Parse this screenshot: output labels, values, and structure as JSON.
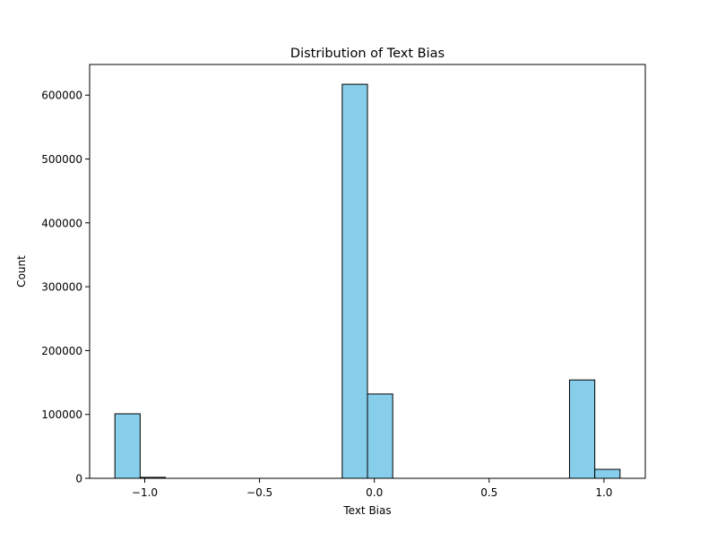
{
  "chart_data": {
    "type": "bar",
    "title": "Distribution of Text Bias",
    "xlabel": "Text Bias",
    "ylabel": "Count",
    "xlim": [
      -1.24,
      1.18
    ],
    "ylim": [
      0,
      648000
    ],
    "x_ticks": [
      -1.0,
      -0.5,
      0.0,
      0.5,
      1.0
    ],
    "x_tick_labels": [
      "−1.0",
      "−0.5",
      "0.0",
      "0.5",
      "1.0"
    ],
    "y_ticks": [
      0,
      100000,
      200000,
      300000,
      400000,
      500000,
      600000
    ],
    "y_tick_labels": [
      "0",
      "100000",
      "200000",
      "300000",
      "400000",
      "500000",
      "600000"
    ],
    "bin_edges": [
      -1.13,
      -1.02,
      -0.91,
      -0.8,
      -0.69,
      -0.58,
      -0.47,
      -0.36,
      -0.25,
      -0.14,
      -0.03,
      0.08,
      0.19,
      0.3,
      0.41,
      0.52,
      0.63,
      0.74,
      0.85,
      0.96,
      1.07
    ],
    "values": [
      101000,
      1500,
      0,
      0,
      0,
      0,
      0,
      0,
      0,
      617000,
      132000,
      0,
      0,
      0,
      0,
      0,
      0,
      0,
      154000,
      14000
    ],
    "bar_color": "#87ceeb",
    "edge_color": "#000000",
    "grid": false,
    "legend": "none"
  }
}
